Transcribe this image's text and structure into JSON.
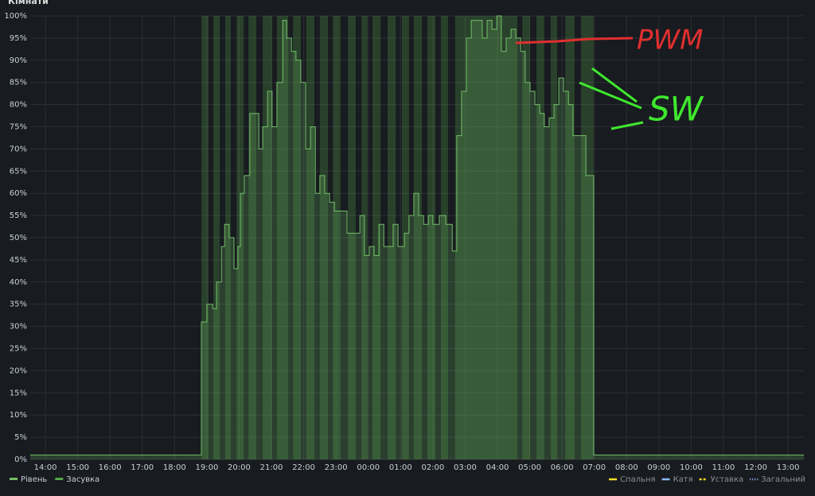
{
  "chart_data": {
    "type": "line",
    "title": "Кімнати",
    "xlim": [
      13.53,
      37.49
    ],
    "xticks": [
      {
        "value": 14,
        "label": "14:00"
      },
      {
        "value": 15,
        "label": "15:00"
      },
      {
        "value": 16,
        "label": "16:00"
      },
      {
        "value": 17,
        "label": "17:00"
      },
      {
        "value": 18,
        "label": "18:00"
      },
      {
        "value": 19,
        "label": "19:00"
      },
      {
        "value": 20,
        "label": "20:00"
      },
      {
        "value": 21,
        "label": "21:00"
      },
      {
        "value": 22,
        "label": "22:00"
      },
      {
        "value": 23,
        "label": "23:00"
      },
      {
        "value": 24,
        "label": "00:00"
      },
      {
        "value": 25,
        "label": "01:00"
      },
      {
        "value": 26,
        "label": "02:00"
      },
      {
        "value": 27,
        "label": "03:00"
      },
      {
        "value": 28,
        "label": "04:00"
      },
      {
        "value": 29,
        "label": "05:00"
      },
      {
        "value": 30,
        "label": "06:00"
      },
      {
        "value": 31,
        "label": "07:00"
      },
      {
        "value": 32,
        "label": "08:00"
      },
      {
        "value": 33,
        "label": "09:00"
      },
      {
        "value": 34,
        "label": "10:00"
      },
      {
        "value": 35,
        "label": "11:00"
      },
      {
        "value": 36,
        "label": "12:00"
      },
      {
        "value": 37,
        "label": "13:00"
      }
    ],
    "ylim": [
      0,
      100
    ],
    "yticks": [
      {
        "value": 0,
        "label": "0%"
      },
      {
        "value": 5,
        "label": "5%"
      },
      {
        "value": 10,
        "label": "10%"
      },
      {
        "value": 15,
        "label": "15%"
      },
      {
        "value": 20,
        "label": "20%"
      },
      {
        "value": 25,
        "label": "25%"
      },
      {
        "value": 30,
        "label": "30%"
      },
      {
        "value": 35,
        "label": "35%"
      },
      {
        "value": 40,
        "label": "40%"
      },
      {
        "value": 45,
        "label": "45%"
      },
      {
        "value": 50,
        "label": "50%"
      },
      {
        "value": 55,
        "label": "55%"
      },
      {
        "value": 60,
        "label": "60%"
      },
      {
        "value": 65,
        "label": "65%"
      },
      {
        "value": 70,
        "label": "70%"
      },
      {
        "value": 75,
        "label": "75%"
      },
      {
        "value": 80,
        "label": "80%"
      },
      {
        "value": 85,
        "label": "85%"
      },
      {
        "value": 90,
        "label": "90%"
      },
      {
        "value": 95,
        "label": "95%"
      },
      {
        "value": 100,
        "label": "100%"
      }
    ],
    "grid": true,
    "step": true,
    "series": [
      {
        "name": "Рівень",
        "color": "#73bf69",
        "x": [
          13.53,
          18.83,
          19.0,
          19.18,
          19.3,
          19.45,
          19.55,
          19.69,
          19.84,
          19.96,
          20.04,
          20.16,
          20.33,
          20.61,
          20.73,
          20.88,
          21.02,
          21.17,
          21.35,
          21.47,
          21.62,
          21.76,
          21.91,
          22.06,
          22.21,
          22.36,
          22.5,
          22.65,
          22.8,
          22.95,
          23.19,
          23.34,
          23.54,
          23.74,
          23.88,
          24.03,
          24.18,
          24.33,
          24.48,
          24.62,
          24.77,
          24.92,
          25.12,
          25.26,
          25.41,
          25.56,
          25.71,
          25.86,
          26.0,
          26.2,
          26.4,
          26.6,
          26.74,
          26.89,
          27.04,
          27.19,
          27.53,
          27.68,
          27.83,
          27.98,
          28.12,
          28.27,
          28.42,
          28.57,
          28.72,
          28.86,
          29.01,
          29.16,
          29.31,
          29.45,
          29.6,
          29.75,
          29.9,
          30.05,
          30.2,
          30.34,
          30.74,
          30.98,
          37.49
        ],
        "values": [
          1,
          31,
          35,
          34,
          40,
          48,
          53,
          50,
          43,
          48,
          60,
          64,
          78,
          70,
          75,
          83,
          75,
          85,
          99,
          95,
          92,
          90,
          85,
          70,
          75,
          60,
          64,
          60,
          58,
          56,
          56,
          51,
          51,
          55,
          46,
          48,
          46,
          53,
          48,
          48,
          53,
          48,
          51,
          55,
          60,
          55,
          53,
          55,
          53,
          55,
          53,
          47,
          73,
          83,
          95,
          99,
          95,
          99,
          97,
          100,
          92,
          95,
          97,
          95,
          92,
          85,
          83,
          80,
          78,
          75,
          77,
          80,
          86,
          83,
          80,
          73,
          64,
          1,
          1
        ]
      },
      {
        "name": "Засувка",
        "color": "#56a64b",
        "x": [
          13.53,
          18.83,
          19.05,
          19.2,
          19.4,
          19.57,
          19.74,
          19.92,
          20.14,
          20.29,
          20.53,
          20.73,
          21.02,
          21.17,
          21.52,
          21.67,
          21.91,
          22.08,
          22.33,
          22.5,
          22.75,
          22.9,
          23.14,
          23.37,
          23.61,
          23.79,
          23.98,
          24.13,
          24.38,
          24.6,
          24.85,
          25.04,
          25.26,
          25.41,
          25.66,
          25.83,
          26.08,
          26.25,
          26.47,
          26.69,
          28.62,
          28.77,
          29.01,
          29.21,
          29.45,
          29.65,
          29.85,
          30.1,
          30.39,
          30.59,
          30.98
        ],
        "values": [
          0,
          100,
          0,
          100,
          0,
          100,
          0,
          100,
          0,
          100,
          0,
          100,
          0,
          100,
          0,
          100,
          0,
          100,
          0,
          100,
          0,
          100,
          0,
          100,
          0,
          100,
          0,
          100,
          0,
          100,
          0,
          100,
          0,
          100,
          0,
          100,
          0,
          100,
          0,
          100,
          0,
          100,
          0,
          100,
          0,
          100,
          0,
          100,
          0,
          100,
          0
        ]
      }
    ],
    "legend_right": [
      {
        "name": "Спальня",
        "color": "#fade2a"
      },
      {
        "name": "Катя",
        "color": "#8ab8ff"
      },
      {
        "name": "Уставка",
        "color": "#fade2a"
      },
      {
        "name": "Загальний",
        "color": "#8ab8ff"
      }
    ],
    "annotations": [
      {
        "text": "PWM",
        "color": "#e02f2f"
      },
      {
        "text": "SW",
        "color": "#3fe82e"
      }
    ]
  }
}
